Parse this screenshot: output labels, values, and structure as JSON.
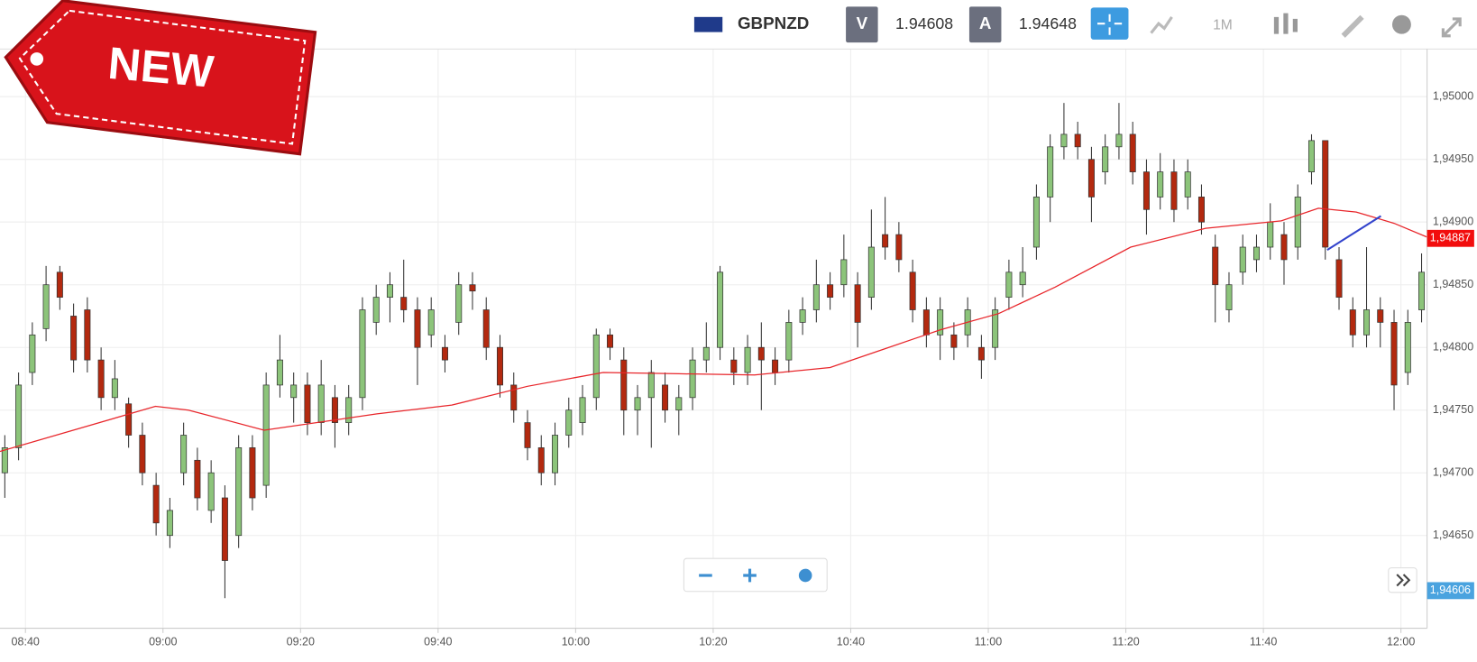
{
  "header": {
    "symbol": "GBPNZD",
    "bid_label": "V",
    "bid": "1.94608",
    "ask_label": "A",
    "ask": "1.94648",
    "timeframe": "1M"
  },
  "badge": "NEW",
  "chart_data": {
    "type": "candlestick",
    "x": [
      517,
      519,
      521,
      523,
      525,
      527,
      529,
      531,
      533,
      535,
      537,
      539,
      541,
      543,
      545,
      547,
      549,
      551,
      553,
      555,
      557,
      559,
      561,
      563,
      565,
      567,
      569,
      571,
      573,
      575,
      577,
      579,
      581,
      583,
      585,
      587,
      589,
      591,
      593,
      595,
      597,
      599,
      601,
      603,
      605,
      607,
      609,
      611,
      613,
      615,
      617,
      619,
      621,
      623,
      625,
      627,
      629,
      631,
      633,
      635,
      637,
      639,
      641,
      643,
      645,
      647,
      649,
      651,
      653,
      655,
      657,
      659,
      661,
      663,
      665,
      667,
      669,
      671,
      673,
      675,
      677,
      679,
      681,
      683,
      685,
      687,
      689,
      691,
      693,
      695,
      697,
      699,
      701,
      703,
      705,
      707,
      709,
      711,
      713,
      715,
      717,
      719,
      721,
      723
    ],
    "candles": [
      [
        1.947,
        1.9473,
        1.9468,
        1.9472
      ],
      [
        1.9472,
        1.9478,
        1.9471,
        1.9477
      ],
      [
        1.9478,
        1.9482,
        1.9477,
        1.9481
      ],
      [
        1.94815,
        1.94865,
        1.94805,
        1.9485
      ],
      [
        1.9486,
        1.94865,
        1.9483,
        1.9484
      ],
      [
        1.94825,
        1.94835,
        1.9478,
        1.9479
      ],
      [
        1.9483,
        1.9484,
        1.9478,
        1.9479
      ],
      [
        1.9479,
        1.948,
        1.9475,
        1.9476
      ],
      [
        1.9476,
        1.9479,
        1.9475,
        1.94775
      ],
      [
        1.94755,
        1.9476,
        1.9472,
        1.9473
      ],
      [
        1.9473,
        1.9474,
        1.9469,
        1.947
      ],
      [
        1.9469,
        1.947,
        1.9465,
        1.9466
      ],
      [
        1.9465,
        1.9468,
        1.9464,
        1.9467
      ],
      [
        1.947,
        1.9474,
        1.9469,
        1.9473
      ],
      [
        1.9471,
        1.9472,
        1.9467,
        1.9468
      ],
      [
        1.9467,
        1.9471,
        1.9466,
        1.947
      ],
      [
        1.9468,
        1.9469,
        1.946,
        1.9463
      ],
      [
        1.9465,
        1.9473,
        1.9464,
        1.9472
      ],
      [
        1.9472,
        1.9473,
        1.9467,
        1.9468
      ],
      [
        1.9469,
        1.9478,
        1.9468,
        1.9477
      ],
      [
        1.9477,
        1.9481,
        1.9476,
        1.9479
      ],
      [
        1.9476,
        1.9478,
        1.9474,
        1.9477
      ],
      [
        1.9477,
        1.9478,
        1.9473,
        1.9474
      ],
      [
        1.9474,
        1.9479,
        1.9473,
        1.9477
      ],
      [
        1.9476,
        1.9477,
        1.9472,
        1.9474
      ],
      [
        1.9474,
        1.9477,
        1.9473,
        1.9476
      ],
      [
        1.9476,
        1.9484,
        1.9475,
        1.9483
      ],
      [
        1.9482,
        1.9485,
        1.9481,
        1.9484
      ],
      [
        1.9484,
        1.9486,
        1.9482,
        1.9485
      ],
      [
        1.9484,
        1.9487,
        1.9482,
        1.9483
      ],
      [
        1.9483,
        1.9484,
        1.9477,
        1.948
      ],
      [
        1.9481,
        1.9484,
        1.948,
        1.9483
      ],
      [
        1.948,
        1.9481,
        1.9478,
        1.9479
      ],
      [
        1.9482,
        1.9486,
        1.9481,
        1.9485
      ],
      [
        1.9485,
        1.9486,
        1.9483,
        1.94845
      ],
      [
        1.9483,
        1.9484,
        1.9479,
        1.948
      ],
      [
        1.948,
        1.9481,
        1.9476,
        1.9477
      ],
      [
        1.9477,
        1.9478,
        1.9474,
        1.9475
      ],
      [
        1.9474,
        1.9475,
        1.9471,
        1.9472
      ],
      [
        1.9472,
        1.9473,
        1.9469,
        1.947
      ],
      [
        1.947,
        1.9474,
        1.9469,
        1.9473
      ],
      [
        1.9473,
        1.9476,
        1.9472,
        1.9475
      ],
      [
        1.9474,
        1.9477,
        1.9473,
        1.9476
      ],
      [
        1.9476,
        1.94815,
        1.9475,
        1.9481
      ],
      [
        1.9481,
        1.94815,
        1.9479,
        1.948
      ],
      [
        1.9479,
        1.948,
        1.9473,
        1.9475
      ],
      [
        1.9475,
        1.9477,
        1.9473,
        1.9476
      ],
      [
        1.9476,
        1.9479,
        1.9472,
        1.9478
      ],
      [
        1.9477,
        1.9478,
        1.9474,
        1.9475
      ],
      [
        1.9475,
        1.9477,
        1.9473,
        1.9476
      ],
      [
        1.9476,
        1.948,
        1.9475,
        1.9479
      ],
      [
        1.9479,
        1.9482,
        1.9478,
        1.948
      ],
      [
        1.948,
        1.94865,
        1.9479,
        1.9486
      ],
      [
        1.9479,
        1.948,
        1.9477,
        1.9478
      ],
      [
        1.9478,
        1.9481,
        1.9477,
        1.948
      ],
      [
        1.948,
        1.9482,
        1.9475,
        1.9479
      ],
      [
        1.9479,
        1.948,
        1.9477,
        1.9478
      ],
      [
        1.9479,
        1.9483,
        1.9478,
        1.9482
      ],
      [
        1.9482,
        1.9484,
        1.9481,
        1.9483
      ],
      [
        1.9483,
        1.9487,
        1.9482,
        1.9485
      ],
      [
        1.9485,
        1.9486,
        1.9483,
        1.9484
      ],
      [
        1.9485,
        1.9489,
        1.9484,
        1.9487
      ],
      [
        1.9485,
        1.9486,
        1.948,
        1.9482
      ],
      [
        1.9484,
        1.9491,
        1.9483,
        1.9488
      ],
      [
        1.9489,
        1.9492,
        1.9487,
        1.9488
      ],
      [
        1.9489,
        1.949,
        1.9486,
        1.9487
      ],
      [
        1.9486,
        1.9487,
        1.9482,
        1.9483
      ],
      [
        1.9483,
        1.9484,
        1.948,
        1.9481
      ],
      [
        1.9481,
        1.9484,
        1.9479,
        1.9483
      ],
      [
        1.9481,
        1.9482,
        1.9479,
        1.948
      ],
      [
        1.9481,
        1.9484,
        1.948,
        1.9483
      ],
      [
        1.948,
        1.9481,
        1.94775,
        1.9479
      ],
      [
        1.948,
        1.9484,
        1.9479,
        1.9483
      ],
      [
        1.9484,
        1.9487,
        1.9483,
        1.9486
      ],
      [
        1.9485,
        1.9488,
        1.9484,
        1.9486
      ],
      [
        1.9488,
        1.9493,
        1.9487,
        1.9492
      ],
      [
        1.9492,
        1.9497,
        1.949,
        1.9496
      ],
      [
        1.9496,
        1.94995,
        1.9495,
        1.9497
      ],
      [
        1.9497,
        1.9498,
        1.9495,
        1.9496
      ],
      [
        1.9495,
        1.9496,
        1.949,
        1.9492
      ],
      [
        1.9494,
        1.9497,
        1.9493,
        1.9496
      ],
      [
        1.9496,
        1.94995,
        1.9495,
        1.9497
      ],
      [
        1.9497,
        1.9498,
        1.9493,
        1.9494
      ],
      [
        1.9494,
        1.9495,
        1.9489,
        1.9491
      ],
      [
        1.9492,
        1.94955,
        1.9491,
        1.9494
      ],
      [
        1.9494,
        1.9495,
        1.949,
        1.9491
      ],
      [
        1.9492,
        1.9495,
        1.9491,
        1.9494
      ],
      [
        1.9492,
        1.9493,
        1.9489,
        1.949
      ],
      [
        1.9488,
        1.9489,
        1.9482,
        1.9485
      ],
      [
        1.9483,
        1.9486,
        1.9482,
        1.9485
      ],
      [
        1.9486,
        1.9489,
        1.9485,
        1.9488
      ],
      [
        1.9487,
        1.9489,
        1.9486,
        1.9488
      ],
      [
        1.9488,
        1.94915,
        1.9487,
        1.949
      ],
      [
        1.9489,
        1.949,
        1.9485,
        1.9487
      ],
      [
        1.9488,
        1.9493,
        1.9487,
        1.9492
      ],
      [
        1.9494,
        1.9497,
        1.9493,
        1.94965
      ],
      [
        1.94965,
        1.94965,
        1.9487,
        1.9488
      ],
      [
        1.9487,
        1.9488,
        1.9483,
        1.9484
      ],
      [
        1.9483,
        1.9484,
        1.948,
        1.9481
      ],
      [
        1.9481,
        1.9488,
        1.948,
        1.9483
      ],
      [
        1.9483,
        1.9484,
        1.948,
        1.9482
      ],
      [
        1.9482,
        1.9483,
        1.9475,
        1.9477
      ],
      [
        1.9478,
        1.9483,
        1.9477,
        1.9482
      ],
      [
        1.9483,
        1.94875,
        1.9482,
        1.9486
      ]
    ],
    "up_color": "#8cc47a",
    "down_color": "#b3290f",
    "ma": {
      "color": "#e8262b",
      "x": [
        516.3,
        538.9,
        543.7,
        554.7,
        571.1,
        582,
        593,
        604,
        615,
        626,
        637,
        645,
        653,
        661.5,
        669.7,
        680.7,
        691.6,
        702.6,
        708,
        713.5,
        719,
        723.8
      ],
      "values": [
        1.94717,
        1.94753,
        1.9475,
        1.94734,
        1.94747,
        1.94754,
        1.94769,
        1.9478,
        1.94779,
        1.94778,
        1.94784,
        1.94799,
        1.94814,
        1.94827,
        1.94848,
        1.9488,
        1.94895,
        1.94901,
        1.94911,
        1.94908,
        1.94899,
        1.94888
      ]
    },
    "xlim": [
      516.3,
      723.8
    ],
    "ylim": [
      1.94576,
      1.95038
    ],
    "xticks": [
      {
        "value": 520,
        "label": "08:40"
      },
      {
        "value": 540,
        "label": "09:00"
      },
      {
        "value": 560,
        "label": "09:20"
      },
      {
        "value": 580,
        "label": "09:40"
      },
      {
        "value": 600,
        "label": "10:00"
      },
      {
        "value": 620,
        "label": "10:20"
      },
      {
        "value": 640,
        "label": "10:40"
      },
      {
        "value": 660,
        "label": "11:00"
      },
      {
        "value": 680,
        "label": "11:20"
      },
      {
        "value": 700,
        "label": "11:40"
      },
      {
        "value": 720,
        "label": "12:00"
      }
    ],
    "yticks": [
      {
        "value": 1.9465,
        "label": "1,94650"
      },
      {
        "value": 1.947,
        "label": "1,94700"
      },
      {
        "value": 1.9475,
        "label": "1,94750"
      },
      {
        "value": 1.948,
        "label": "1,94800"
      },
      {
        "value": 1.9485,
        "label": "1,94850"
      },
      {
        "value": 1.949,
        "label": "1,94900"
      },
      {
        "value": 1.9495,
        "label": "1,94950"
      },
      {
        "value": 1.95,
        "label": "1,95000"
      }
    ],
    "price_tags": [
      {
        "value": 1.94887,
        "label": "1,94887",
        "color": "#f20d0d"
      },
      {
        "value": 1.94606,
        "label": "1,94606",
        "color": "#4aa3df"
      }
    ],
    "grid": true
  }
}
